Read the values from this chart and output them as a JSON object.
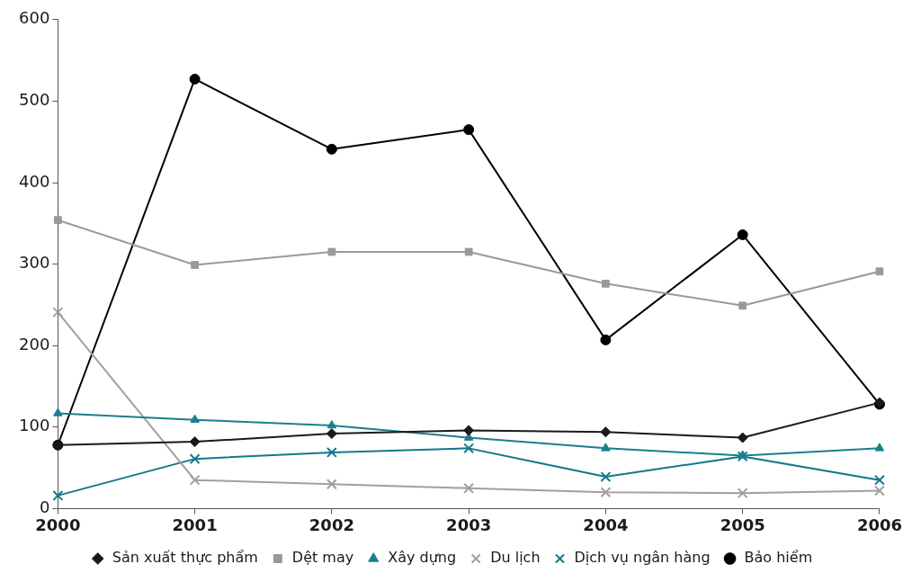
{
  "chart_data": {
    "type": "line",
    "categories": [
      "2000",
      "2001",
      "2002",
      "2003",
      "2004",
      "2005",
      "2006"
    ],
    "ylim": [
      0,
      600
    ],
    "yticks": [
      0,
      100,
      200,
      300,
      400,
      500,
      600
    ],
    "grid": false,
    "legend": "bottom",
    "series": [
      {
        "name": "Sản xuất thực phẩm",
        "color": "#1a1a1a",
        "marker": "diamond",
        "values": [
          78,
          82,
          92,
          96,
          94,
          87,
          130
        ]
      },
      {
        "name": "Dệt may",
        "color": "#999999",
        "marker": "square",
        "values": [
          354,
          299,
          315,
          315,
          276,
          249,
          291
        ]
      },
      {
        "name": "Xây dựng",
        "color": "#1a7f8e",
        "marker": "triangle",
        "values": [
          117,
          109,
          102,
          87,
          74,
          65,
          74
        ]
      },
      {
        "name": "Du lịch",
        "color": "#a0a0a0",
        "marker": "cross",
        "values": [
          241,
          35,
          30,
          25,
          20,
          19,
          22
        ]
      },
      {
        "name": "Dịch vụ ngân hàng",
        "color": "#12788a",
        "marker": "cross",
        "values": [
          16,
          61,
          69,
          74,
          39,
          64,
          35
        ]
      },
      {
        "name": "Bảo hiểm",
        "color": "#000000",
        "marker": "circle",
        "values": [
          78,
          527,
          441,
          465,
          207,
          336,
          128
        ]
      }
    ]
  }
}
